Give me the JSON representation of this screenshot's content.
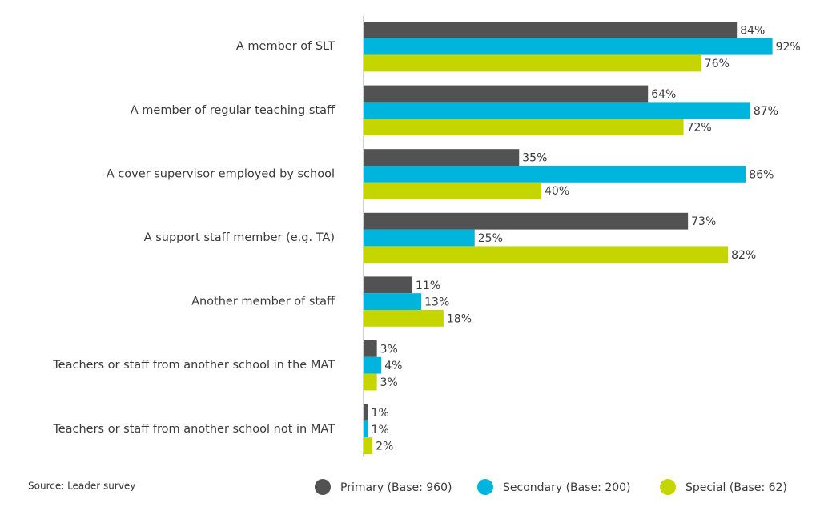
{
  "chart_data": {
    "type": "bar",
    "orientation": "horizontal",
    "categories": [
      "A member of SLT",
      "A member of regular teaching staff",
      "A cover supervisor employed  by school",
      "A support staff member (e.g. TA)",
      "Another member of staff",
      "Teachers or staff from another school in the MAT",
      "Teachers or staff from another school not in MAT"
    ],
    "series": [
      {
        "name": "Primary (Base: 960)",
        "color": "#525252",
        "values": [
          84,
          64,
          35,
          73,
          11,
          3,
          1
        ],
        "value_labels": [
          "84%",
          "64%",
          "35%",
          "73%",
          "11%",
          "3%",
          "1%"
        ]
      },
      {
        "name": "Secondary (Base: 200)",
        "color": "#00b5dd",
        "values": [
          92,
          87,
          86,
          25,
          13,
          4,
          1
        ],
        "value_labels": [
          "92%",
          "87%",
          "86%",
          "25%",
          "13%",
          "4%",
          "1%"
        ]
      },
      {
        "name": "Special (Base: 62)",
        "color": "#c5d500",
        "values": [
          76,
          72,
          40,
          82,
          18,
          3,
          2
        ],
        "value_labels": [
          "76%",
          "72%",
          "40%",
          "82%",
          "18%",
          "3%",
          "2%"
        ]
      }
    ],
    "source": "Source: Leader survey"
  }
}
